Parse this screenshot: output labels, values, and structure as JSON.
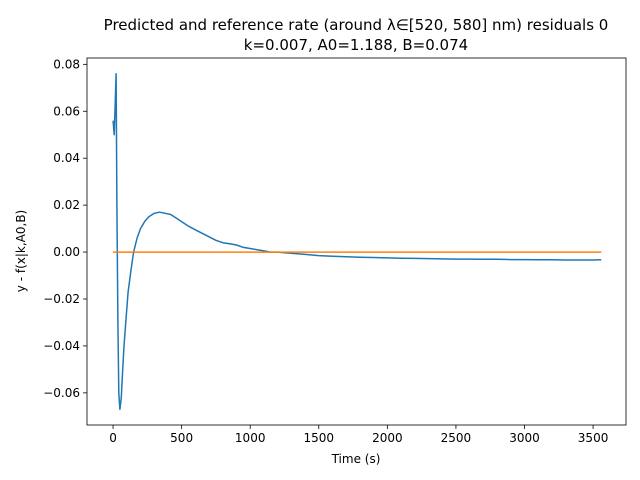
{
  "chart_data": {
    "type": "line",
    "title_line1": "Predicted and reference rate (around λ∈[520, 580] nm) residuals 0",
    "title_line2": "k=0.007, A0=1.188, B=0.074",
    "xlabel": "Time (s)",
    "ylabel": "y - f(x|k,A0,B)",
    "xlim": [
      -190,
      3740
    ],
    "ylim": [
      -0.0737,
      0.0827
    ],
    "xticks": [
      0,
      500,
      1000,
      1500,
      2000,
      2500,
      3000,
      3500
    ],
    "xtick_labels": [
      "0",
      "500",
      "1000",
      "1500",
      "2000",
      "2500",
      "3000",
      "3500"
    ],
    "yticks": [
      -0.06,
      -0.04,
      -0.02,
      0.0,
      0.02,
      0.04,
      0.06,
      0.08
    ],
    "ytick_labels": [
      "−0.06",
      "−0.04",
      "−0.02",
      "0.00",
      "0.02",
      "0.04",
      "0.06",
      "0.08"
    ],
    "grid": false,
    "series": [
      {
        "color": "#1f77b4",
        "x": [
          0,
          8,
          15,
          22,
          28,
          35,
          42,
          50,
          60,
          70,
          80,
          95,
          110,
          130,
          150,
          175,
          200,
          230,
          260,
          300,
          340,
          380,
          420,
          460,
          500,
          550,
          600,
          650,
          700,
          750,
          800,
          850,
          900,
          950,
          1000,
          1050,
          1100,
          1150,
          1200,
          1250,
          1300,
          1400,
          1500,
          1600,
          1700,
          1800,
          1900,
          2000,
          2100,
          2200,
          2300,
          2400,
          2500,
          2600,
          2700,
          2800,
          2900,
          3000,
          3100,
          3200,
          3300,
          3400,
          3500,
          3560
        ],
        "y": [
          0.056,
          0.05,
          0.062,
          0.076,
          0.02,
          -0.03,
          -0.06,
          -0.067,
          -0.062,
          -0.05,
          -0.04,
          -0.028,
          -0.017,
          -0.008,
          0.0,
          0.006,
          0.01,
          0.013,
          0.015,
          0.0165,
          0.017,
          0.0165,
          0.016,
          0.0145,
          0.013,
          0.011,
          0.0095,
          0.008,
          0.0065,
          0.005,
          0.004,
          0.0035,
          0.003,
          0.002,
          0.0015,
          0.001,
          0.0005,
          0.0,
          0.0,
          -0.0003,
          -0.0005,
          -0.001,
          -0.0015,
          -0.0018,
          -0.002,
          -0.0022,
          -0.0023,
          -0.0025,
          -0.0026,
          -0.0027,
          -0.0028,
          -0.0029,
          -0.003,
          -0.003,
          -0.0031,
          -0.0031,
          -0.0032,
          -0.0032,
          -0.0033,
          -0.0033,
          -0.0034,
          -0.0034,
          -0.0034,
          -0.0033
        ]
      },
      {
        "color": "#ff7f0e",
        "x": [
          0,
          3560
        ],
        "y": [
          0.0,
          0.0
        ]
      }
    ]
  }
}
